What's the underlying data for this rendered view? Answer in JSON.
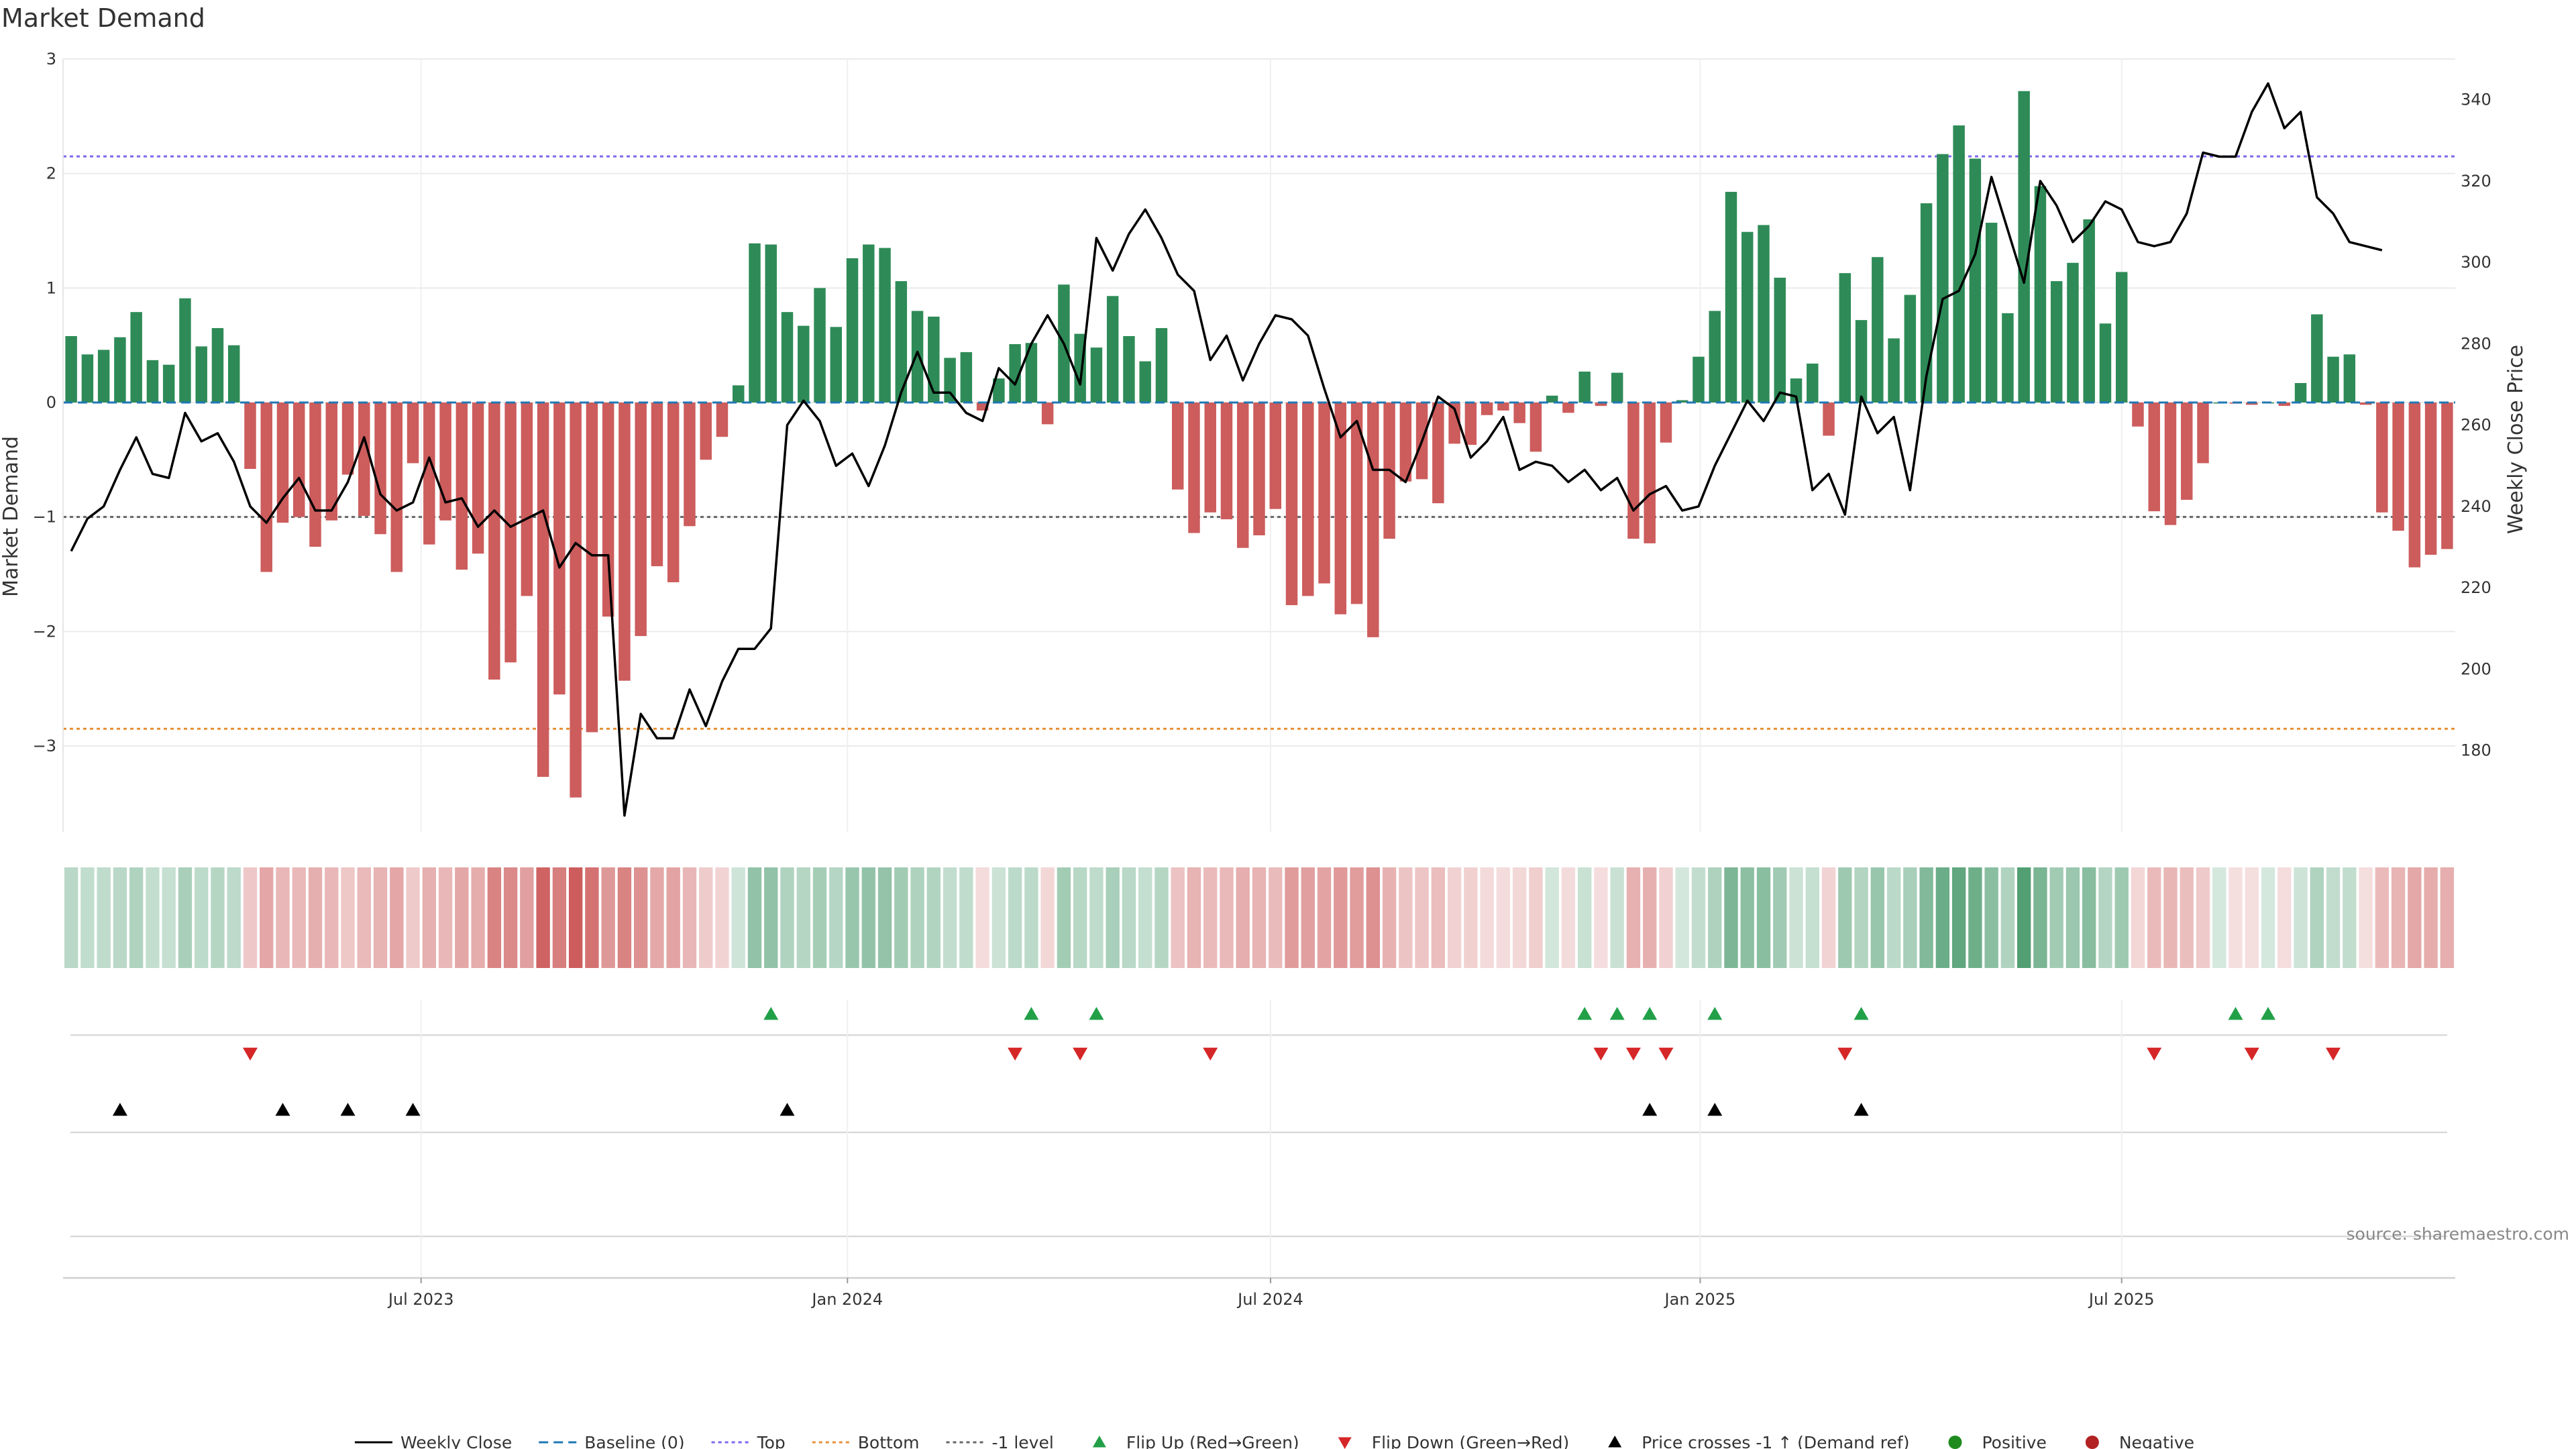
{
  "chart_data": {
    "type": "bar",
    "title": "Market Demand",
    "ylabel_left": "Market Demand",
    "ylabel_right": "Weekly Close Price",
    "source": "source: sharemaestro.com",
    "ylim_left": [
      -3.75,
      3.0
    ],
    "ylim_right": [
      160,
      350
    ],
    "yticks_left": [
      {
        "v": 3,
        "label": "3"
      },
      {
        "v": 2,
        "label": "2"
      },
      {
        "v": 1,
        "label": "1"
      },
      {
        "v": 0,
        "label": "0"
      },
      {
        "v": -1,
        "label": "−1"
      },
      {
        "v": -2,
        "label": "−2"
      },
      {
        "v": -3,
        "label": "−3"
      }
    ],
    "yticks_right": [
      {
        "v": 180,
        "label": "180"
      },
      {
        "v": 200,
        "label": "200"
      },
      {
        "v": 220,
        "label": "220"
      },
      {
        "v": 240,
        "label": "240"
      },
      {
        "v": 260,
        "label": "260"
      },
      {
        "v": 280,
        "label": "280"
      },
      {
        "v": 300,
        "label": "300"
      },
      {
        "v": 320,
        "label": "320"
      },
      {
        "v": 340,
        "label": "340"
      }
    ],
    "xticks": [
      {
        "index": 21.5,
        "label": "Jul 2023"
      },
      {
        "index": 47.7,
        "label": "Jan 2024"
      },
      {
        "index": 73.7,
        "label": "Jul 2024"
      },
      {
        "index": 100.1,
        "label": "Jan 2025"
      },
      {
        "index": 126.0,
        "label": "Jul 2025"
      }
    ],
    "reference_lines": {
      "top": 2.15,
      "bottom": -2.85,
      "minus_one": -1.0
    },
    "demand": [
      0.58,
      0.42,
      0.46,
      0.57,
      0.79,
      0.37,
      0.33,
      0.91,
      0.49,
      0.65,
      0.5,
      -0.58,
      -1.48,
      -1.05,
      -1.0,
      -1.26,
      -1.03,
      -0.63,
      -0.99,
      -1.15,
      -1.48,
      -0.53,
      -1.24,
      -1.03,
      -1.46,
      -1.32,
      -2.42,
      -2.27,
      -1.69,
      -3.27,
      -2.55,
      -3.45,
      -2.88,
      -1.87,
      -2.43,
      -2.04,
      -1.43,
      -1.57,
      -1.08,
      -0.5,
      -0.3,
      0.15,
      1.39,
      1.38,
      0.79,
      0.67,
      1.0,
      0.66,
      1.26,
      1.38,
      1.35,
      1.06,
      0.8,
      0.75,
      0.39,
      0.44,
      -0.07,
      0.21,
      0.51,
      0.52,
      -0.19,
      1.03,
      0.6,
      0.48,
      0.93,
      0.58,
      0.36,
      0.65,
      -0.76,
      -1.14,
      -0.96,
      -1.02,
      -1.27,
      -1.16,
      -0.93,
      -1.77,
      -1.69,
      -1.58,
      -1.85,
      -1.76,
      -2.05,
      -1.19,
      -0.69,
      -0.67,
      -0.88,
      -0.36,
      -0.37,
      -0.11,
      -0.07,
      -0.18,
      -0.43,
      0.06,
      -0.09,
      0.27,
      -0.03,
      0.26,
      -1.19,
      -1.23,
      -0.35,
      0.02,
      0.4,
      0.8,
      1.84,
      1.49,
      1.55,
      1.09,
      0.21,
      0.34,
      -0.29,
      1.13,
      0.72,
      1.27,
      0.56,
      0.94,
      1.74,
      2.17,
      2.42,
      2.13,
      1.57,
      0.78,
      2.72,
      1.89,
      1.06,
      1.22,
      1.6,
      0.69,
      1.14,
      -0.21,
      -0.95,
      -1.07,
      -0.85,
      -0.53,
      0.0,
      -0.01,
      -0.02,
      0.0,
      -0.03,
      0.17,
      0.77,
      0.4,
      0.42,
      -0.02,
      -0.96,
      -1.12,
      -1.44,
      -1.33,
      -1.28
    ],
    "weekly_close": [
      229,
      237,
      240,
      249,
      257,
      248,
      247,
      263,
      256,
      258,
      251,
      240,
      236,
      242,
      247,
      239,
      239,
      246,
      257,
      243,
      239,
      241,
      252,
      241,
      242,
      235,
      239,
      235,
      237,
      239,
      225,
      231,
      228,
      228,
      164,
      189,
      183,
      183,
      195,
      186,
      197,
      205,
      205,
      210,
      260,
      266,
      261,
      250,
      253,
      245,
      255,
      268,
      278,
      268,
      268,
      263,
      261,
      274,
      270,
      280,
      287,
      280,
      270,
      306,
      298,
      307,
      313,
      306,
      297,
      293,
      276,
      282,
      271,
      280,
      287,
      286,
      282,
      269,
      257,
      261,
      249,
      249,
      246,
      256,
      267,
      264,
      252,
      256,
      262,
      249,
      251,
      250,
      246,
      249,
      244,
      247,
      239,
      243,
      245,
      239,
      240,
      250,
      258,
      266,
      261,
      268,
      267,
      244,
      248,
      238,
      267,
      258,
      262,
      244,
      272,
      291,
      293,
      302,
      321,
      308,
      295,
      320,
      314,
      305,
      309,
      315,
      313,
      305,
      304,
      305,
      312,
      327,
      326,
      326,
      337,
      344,
      333,
      337,
      316,
      312,
      305,
      304,
      303
    ],
    "flip_up_indices": [
      43,
      59,
      63,
      93,
      95,
      97,
      101,
      110,
      133,
      135
    ],
    "flip_down_indices": [
      11,
      58,
      62,
      70,
      94,
      96,
      98,
      109,
      128,
      134,
      139
    ],
    "price_cross_indices": [
      3,
      13,
      17,
      21,
      44,
      97,
      101,
      110
    ],
    "colors": {
      "positive": "#2e8b57",
      "negative": "#cd5c5c",
      "line": "#000000",
      "top": "#7b68ee",
      "bottom": "#e69138",
      "minus_one": "#666666",
      "flip_up": "#22a048",
      "flip_down": "#d62728",
      "price_cross": "#000000",
      "positive_dot": "#1f8b1f",
      "negative_dot": "#b22222"
    },
    "legend": [
      {
        "label": "Weekly Close",
        "symbol": "solid-line",
        "color": "#000000"
      },
      {
        "label": "Baseline (0)",
        "symbol": "dash-line",
        "color": "#1f77b4"
      },
      {
        "label": "Top",
        "symbol": "dot-line",
        "color": "#7b68ee"
      },
      {
        "label": "Bottom",
        "symbol": "dot-line",
        "color": "#e69138"
      },
      {
        "label": "-1 level",
        "symbol": "dot-line",
        "color": "#666666"
      },
      {
        "label": "Flip Up (Red→Green)",
        "symbol": "triangle-up",
        "color": "#22a048"
      },
      {
        "label": "Flip Down (Green→Red)",
        "symbol": "triangle-down",
        "color": "#d62728"
      },
      {
        "label": "Price crosses -1 ↑ (Demand ref)",
        "symbol": "triangle-up",
        "color": "#000000"
      },
      {
        "label": "Positive",
        "symbol": "circle",
        "color": "#1f8b1f"
      },
      {
        "label": "Negative",
        "symbol": "circle",
        "color": "#b22222"
      }
    ]
  }
}
